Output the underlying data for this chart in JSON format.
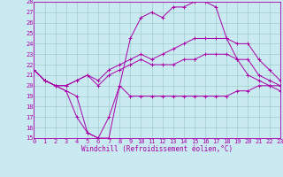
{
  "background_color": "#c8eaf0",
  "grid_color": "#a0cccc",
  "line_color": "#aa00aa",
  "xlabel": "Windchill (Refroidissement éolien,°C)",
  "xmin": 0,
  "xmax": 23,
  "ymin": 15,
  "ymax": 28,
  "series": [
    [
      21.5,
      20.5,
      20.0,
      20.0,
      20.5,
      21.0,
      20.0,
      21.0,
      21.5,
      22.0,
      22.5,
      22.0,
      22.0,
      22.0,
      22.5,
      22.5,
      23.0,
      23.0,
      23.0,
      22.5,
      22.5,
      21.0,
      20.5,
      20.0
    ],
    [
      21.5,
      20.5,
      20.0,
      20.0,
      20.5,
      21.0,
      20.5,
      21.5,
      22.0,
      22.5,
      23.0,
      22.5,
      23.0,
      23.5,
      24.0,
      24.5,
      24.5,
      24.5,
      24.5,
      24.0,
      24.0,
      22.5,
      21.5,
      20.5
    ],
    [
      21.5,
      20.5,
      20.0,
      19.5,
      19.0,
      15.5,
      15.0,
      15.0,
      20.0,
      19.0,
      19.0,
      19.0,
      19.0,
      19.0,
      19.0,
      19.0,
      19.0,
      19.0,
      19.0,
      19.5,
      19.5,
      20.0,
      20.0,
      19.5
    ],
    [
      21.5,
      20.5,
      20.0,
      19.5,
      17.0,
      15.5,
      15.0,
      17.0,
      20.0,
      24.5,
      26.5,
      27.0,
      26.5,
      27.5,
      27.5,
      28.0,
      28.0,
      27.5,
      24.5,
      22.5,
      21.0,
      20.5,
      20.0,
      20.0
    ]
  ],
  "xlabel_fontsize": 5.5,
  "tick_fontsize": 5.0
}
